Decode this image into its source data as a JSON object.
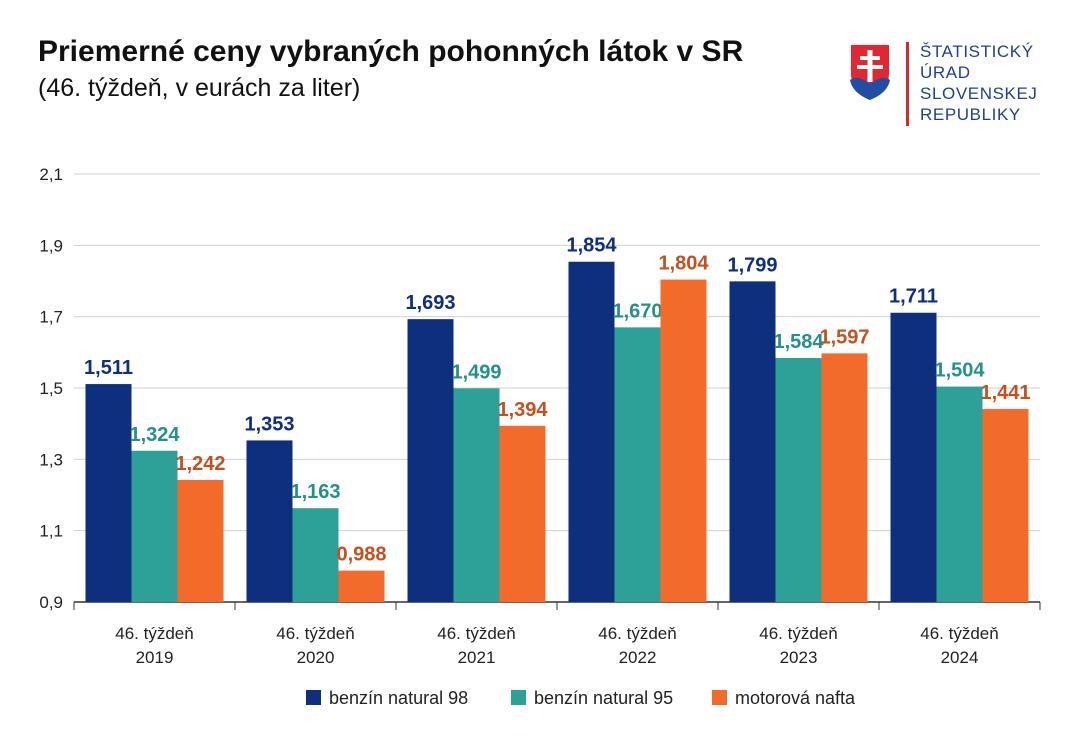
{
  "header": {
    "title": "Priemerné ceny vybraných pohonných látok v SR",
    "subtitle": "(46. týždeň, v eurách za liter)"
  },
  "logo": {
    "lines": [
      "ŠTATISTICKÝ",
      "ÚRAD",
      "SLOVENSKEJ",
      "REPUBLIKY"
    ],
    "colors": {
      "shield_red": "#e3262f",
      "shield_blue": "#1f4ea3",
      "text_blue": "#1f3f8f",
      "divider_red": "#d9272e"
    }
  },
  "chart_data": {
    "type": "bar",
    "categories": [
      [
        "46. týždeň",
        "2019"
      ],
      [
        "46. týždeň",
        "2020"
      ],
      [
        "46. týždeň",
        "2021"
      ],
      [
        "46. týždeň",
        "2022"
      ],
      [
        "46. týždeň",
        "2023"
      ],
      [
        "46. týždeň",
        "2024"
      ]
    ],
    "series": [
      {
        "name": "benzín natural 98",
        "color": "#0d2f7e",
        "label_color": "#0d2f7e",
        "values": [
          1.511,
          1.353,
          1.693,
          1.854,
          1.799,
          1.711
        ],
        "labels": [
          "1,511",
          "1,353",
          "1,693",
          "1,854",
          "1,799",
          "1,711"
        ]
      },
      {
        "name": "benzín natural 95",
        "color": "#2da197",
        "label_color": "#24908a",
        "values": [
          1.324,
          1.163,
          1.499,
          1.67,
          1.584,
          1.504
        ],
        "labels": [
          "1,324",
          "1,163",
          "1,499",
          "1,670",
          "1,584",
          "1,504"
        ]
      },
      {
        "name": "motorová nafta",
        "color": "#f26b2a",
        "label_color": "#c4501d",
        "values": [
          1.242,
          0.988,
          1.394,
          1.804,
          1.597,
          1.441
        ],
        "labels": [
          "1,242",
          "0,988",
          "1,394",
          "1,804",
          "1,597",
          "1,441"
        ]
      }
    ],
    "ylim": [
      0.9,
      2.1
    ],
    "yticks": [
      0.9,
      1.1,
      1.3,
      1.5,
      1.7,
      1.9,
      2.1
    ],
    "ytick_labels": [
      "0,9",
      "1,1",
      "1,3",
      "1,5",
      "1,7",
      "1,9",
      "2,1"
    ],
    "grid": true,
    "legend_position": "bottom-center"
  }
}
